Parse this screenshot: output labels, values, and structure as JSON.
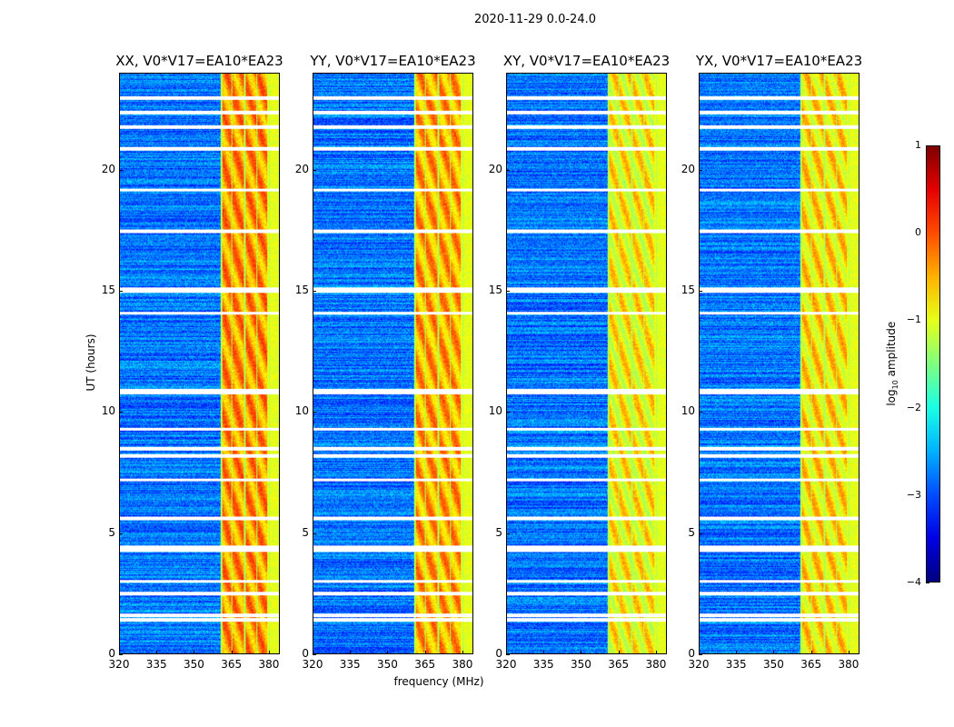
{
  "chart_data": {
    "type": "heatmap",
    "title": "2020-11-29 0.0-24.0",
    "xlabel": "frequency (MHz)",
    "ylabel": "UT (hours)",
    "xlim": [
      320,
      384.4
    ],
    "ylim": [
      0,
      24
    ],
    "xticks": [
      320,
      335,
      350,
      365,
      380
    ],
    "yticks": [
      0,
      5,
      10,
      15,
      20
    ],
    "panels": [
      {
        "title": "XX, V0*V17=EA10*EA23",
        "band_level": 0.0
      },
      {
        "title": "YY, V0*V17=EA10*EA23",
        "band_level": -0.1
      },
      {
        "title": "XY, V0*V17=EA10*EA23",
        "band_level": -0.5
      },
      {
        "title": "YX, V0*V17=EA10*EA23",
        "band_level": -0.4
      }
    ],
    "rfi_band_mhz": [
      361,
      379.5
    ],
    "dark_channel_lines_mhz": [
      361,
      365.1,
      370.5,
      375.3,
      380.4
    ],
    "background_log10_amp": -2.8,
    "flagged_hours": [
      1.4,
      1.6,
      2.5,
      3.0,
      4.3,
      4.4,
      5.6,
      7.2,
      8.2,
      8.5,
      9.3,
      10.8,
      10.9,
      14.1,
      15.0,
      15.1,
      17.5,
      19.2,
      20.9,
      21.8,
      22.4,
      23.0
    ],
    "colorbar": {
      "label_main": "log",
      "label_sub": "10",
      "label_rest": " amplitude",
      "colormap": "jet",
      "range": [
        -4,
        1
      ],
      "ticks": [
        1,
        0,
        -1,
        -2,
        -3,
        -4
      ]
    }
  }
}
